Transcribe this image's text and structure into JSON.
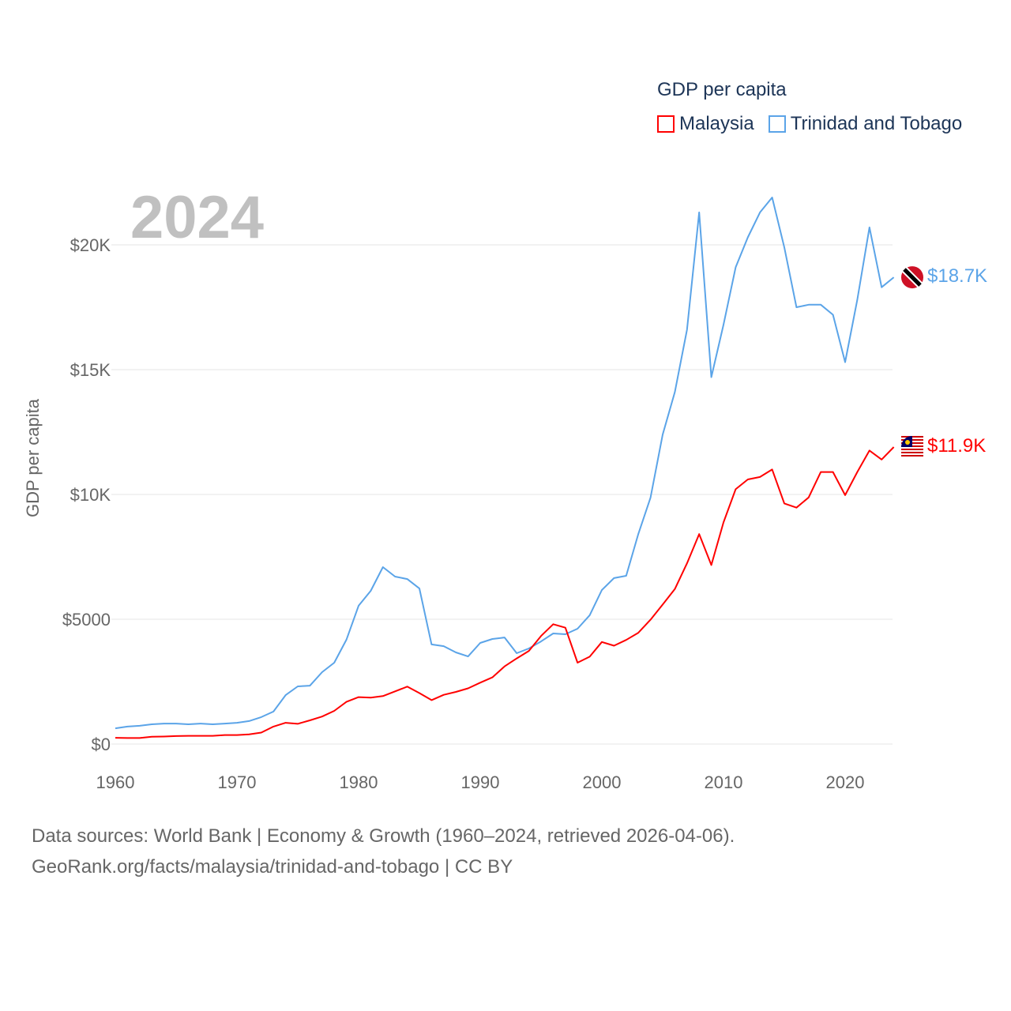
{
  "chart_data": {
    "type": "line",
    "title": "GDP per capita",
    "year_label": "2024",
    "xlabel": "",
    "ylabel": "GDP per capita",
    "xlim": [
      1960,
      2024
    ],
    "ylim": [
      0,
      22000
    ],
    "x_ticks": [
      1960,
      1970,
      1980,
      1990,
      2000,
      2010,
      2020
    ],
    "y_ticks": [
      0,
      5000,
      10000,
      15000,
      20000
    ],
    "y_tick_labels": [
      "$0",
      "$5000",
      "$10K",
      "$15K",
      "$20K"
    ],
    "grid": true,
    "legend_position": "top-right",
    "x": [
      1960,
      1961,
      1962,
      1963,
      1964,
      1965,
      1966,
      1967,
      1968,
      1969,
      1970,
      1971,
      1972,
      1973,
      1974,
      1975,
      1976,
      1977,
      1978,
      1979,
      1980,
      1981,
      1982,
      1983,
      1984,
      1985,
      1986,
      1987,
      1988,
      1989,
      1990,
      1991,
      1992,
      1993,
      1994,
      1995,
      1996,
      1997,
      1998,
      1999,
      2000,
      2001,
      2002,
      2003,
      2004,
      2005,
      2006,
      2007,
      2008,
      2009,
      2010,
      2011,
      2012,
      2013,
      2014,
      2015,
      2016,
      2017,
      2018,
      2019,
      2020,
      2021,
      2022,
      2023,
      2024
    ],
    "series": [
      {
        "name": "Malaysia",
        "color": "#ff0000",
        "end_label": "$11.9K",
        "flag": "malaysia-flag",
        "values": [
          250,
          240,
          240,
          290,
          300,
          320,
          330,
          330,
          330,
          360,
          360,
          390,
          460,
          700,
          850,
          810,
          950,
          1100,
          1330,
          1690,
          1880,
          1860,
          1920,
          2110,
          2300,
          2040,
          1760,
          1970,
          2090,
          2230,
          2460,
          2670,
          3110,
          3430,
          3730,
          4330,
          4800,
          4660,
          3260,
          3500,
          4090,
          3940,
          4170,
          4460,
          4980,
          5590,
          6210,
          7240,
          8410,
          7170,
          8880,
          10210,
          10600,
          10700,
          11000,
          9640,
          9470,
          9880,
          10900,
          10900,
          9970,
          10900,
          11760,
          11400,
          11900
        ]
      },
      {
        "name": "Trinidad and Tobago",
        "color": "#5ba4e8",
        "end_label": "$18.7K",
        "flag": "trinidad-flag",
        "values": [
          630,
          700,
          730,
          790,
          820,
          820,
          790,
          820,
          790,
          820,
          850,
          920,
          1080,
          1300,
          1960,
          2310,
          2340,
          2880,
          3260,
          4180,
          5540,
          6140,
          7090,
          6710,
          6610,
          6230,
          3990,
          3920,
          3670,
          3510,
          4050,
          4210,
          4270,
          3640,
          3830,
          4110,
          4430,
          4400,
          4620,
          5160,
          6170,
          6650,
          6740,
          8420,
          9870,
          12400,
          14100,
          16600,
          21300,
          14700,
          16800,
          19100,
          20300,
          21300,
          21900,
          19900,
          17500,
          17600,
          17600,
          17200,
          15300,
          17800,
          20700,
          18300,
          18700
        ]
      }
    ]
  },
  "footer": {
    "line1": "Data sources: World Bank | Economy & Growth (1960–2024, retrieved 2026-04-06).",
    "line2": "GeoRank.org/facts/malaysia/trinidad-and-tobago | CC BY"
  }
}
